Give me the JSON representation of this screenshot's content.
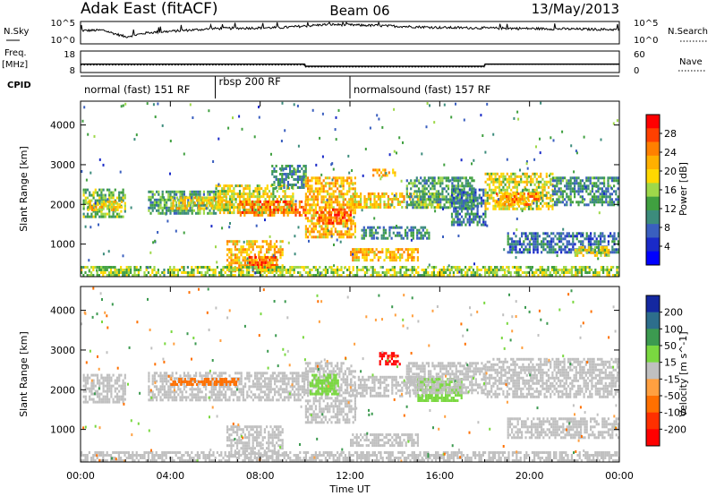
{
  "header": {
    "title": "Adak East (fitACF)",
    "beam": "Beam 06",
    "date": "13/May/2013"
  },
  "panel_labels": {
    "nsky": "N.Sky",
    "nsky_scale_hi": "10^5",
    "nsky_scale_lo": "10^0",
    "nsearch": "N.Search",
    "nsearch_scale_hi": "10^5",
    "nsearch_scale_lo": "10^0",
    "freq_line1": "Freq.",
    "freq_line2": "[MHz]",
    "freq_hi": "18",
    "freq_lo": "8",
    "nave": "Nave",
    "nave_hi": "60",
    "nave_lo": "0",
    "cpid": "CPID"
  },
  "modes": [
    {
      "label": "normal (fast) 151 RF",
      "start_h": 0,
      "end_h": 6
    },
    {
      "label": "rbsp 200 RF",
      "start_h": 6,
      "end_h": 12
    },
    {
      "label": "normalsound (fast) 157 RF",
      "start_h": 12,
      "end_h": 24
    }
  ],
  "power_colorbar": {
    "label": "Power [dB]",
    "ticks": [
      "28",
      "24",
      "20",
      "16",
      "12",
      "8",
      "4"
    ],
    "colors": [
      "#ff0000",
      "#ff4000",
      "#ff8000",
      "#ffb000",
      "#ffd800",
      "#9ed84a",
      "#40a040",
      "#3c8c7c",
      "#3a5fbf",
      "#1a2ac8",
      "#0000ff"
    ]
  },
  "velocity_colorbar": {
    "label": "Velocity [m s^-1]",
    "ticks": [
      "200",
      "100",
      "50",
      "15",
      "-15",
      "-50",
      "-100",
      "-200"
    ],
    "colors": [
      "#1428a0",
      "#2d6e8c",
      "#3c9a50",
      "#7ad840",
      "#c0c0c0",
      "#ffa040",
      "#ff7000",
      "#ff3000",
      "#ff0000"
    ]
  },
  "chart_data": {
    "type": "heatmap",
    "xlabel": "Time UT",
    "x_ticks": [
      "00:00",
      "04:00",
      "08:00",
      "12:00",
      "16:00",
      "20:00",
      "00:00"
    ],
    "xlim_hours": [
      0,
      24
    ],
    "ylabel": "Slant Range [km]",
    "y_ticks": [
      1000,
      2000,
      3000,
      4000
    ],
    "ylim_km": [
      180,
      4600
    ],
    "frequency_mhz": [
      {
        "start_h": 0,
        "end_h": 10,
        "value": 11.8
      },
      {
        "start_h": 10,
        "end_h": 18,
        "value": 10.7
      },
      {
        "start_h": 18,
        "end_h": 24,
        "value": 11.8
      }
    ],
    "nave": [
      {
        "start_h": 0,
        "end_h": 10,
        "value": 20
      },
      {
        "start_h": 10,
        "end_h": 18,
        "value": 14
      },
      {
        "start_h": 18,
        "end_h": 24,
        "value": 22
      }
    ],
    "nsky_log_profile": [
      {
        "h": 0,
        "v": 0.6
      },
      {
        "h": 1,
        "v": 0.62
      },
      {
        "h": 2,
        "v": 0.3
      },
      {
        "h": 3,
        "v": 0.5
      },
      {
        "h": 6,
        "v": 0.7
      },
      {
        "h": 9,
        "v": 0.75
      },
      {
        "h": 11,
        "v": 0.9
      },
      {
        "h": 13,
        "v": 0.85
      },
      {
        "h": 16,
        "v": 0.75
      },
      {
        "h": 20,
        "v": 0.7
      },
      {
        "h": 24,
        "v": 0.65
      }
    ],
    "power_regions_db": [
      {
        "t0": 0.1,
        "t1": 2.0,
        "r0": 1700,
        "r1": 2400,
        "db": 14
      },
      {
        "t0": 0.3,
        "t1": 1.8,
        "r0": 1850,
        "r1": 2100,
        "db": 20
      },
      {
        "t0": 3.0,
        "t1": 6.0,
        "r0": 1800,
        "r1": 2350,
        "db": 12
      },
      {
        "t0": 4.0,
        "t1": 6.5,
        "r0": 1900,
        "r1": 2200,
        "db": 20
      },
      {
        "t0": 6.0,
        "t1": 9.5,
        "r0": 1800,
        "r1": 2500,
        "db": 18
      },
      {
        "t0": 7.0,
        "t1": 10.0,
        "r0": 1700,
        "r1": 2100,
        "db": 26
      },
      {
        "t0": 6.5,
        "t1": 9.0,
        "r0": 300,
        "r1": 1100,
        "db": 22
      },
      {
        "t0": 7.5,
        "t1": 8.8,
        "r0": 400,
        "r1": 700,
        "db": 28
      },
      {
        "t0": 8.5,
        "t1": 10.0,
        "r0": 2400,
        "r1": 3000,
        "db": 10
      },
      {
        "t0": 10.0,
        "t1": 12.2,
        "r0": 1200,
        "r1": 2700,
        "db": 22
      },
      {
        "t0": 10.5,
        "t1": 12.0,
        "r0": 1500,
        "r1": 1900,
        "db": 28
      },
      {
        "t0": 12.0,
        "t1": 16.0,
        "r0": 1900,
        "r1": 2300,
        "db": 20
      },
      {
        "t0": 12.0,
        "t1": 15.0,
        "r0": 600,
        "r1": 900,
        "db": 22
      },
      {
        "t0": 12.5,
        "t1": 15.5,
        "r0": 1150,
        "r1": 1450,
        "db": 10
      },
      {
        "t0": 13.0,
        "t1": 14.0,
        "r0": 2700,
        "r1": 2900,
        "db": 22
      },
      {
        "t0": 14.5,
        "t1": 17.5,
        "r0": 1900,
        "r1": 2700,
        "db": 12
      },
      {
        "t0": 16.5,
        "t1": 18.0,
        "r0": 1500,
        "r1": 2400,
        "db": 8
      },
      {
        "t0": 18.0,
        "t1": 21.0,
        "r0": 1900,
        "r1": 2800,
        "db": 18
      },
      {
        "t0": 18.5,
        "t1": 20.5,
        "r0": 2000,
        "r1": 2300,
        "db": 24
      },
      {
        "t0": 21.0,
        "t1": 24.0,
        "r0": 2000,
        "r1": 2700,
        "db": 10
      },
      {
        "t0": 19.0,
        "t1": 24.0,
        "r0": 800,
        "r1": 1300,
        "db": 8
      },
      {
        "t0": 22.0,
        "t1": 23.5,
        "r0": 700,
        "r1": 950,
        "db": 18
      },
      {
        "t0": 0.0,
        "t1": 24.0,
        "r0": 200,
        "r1": 450,
        "db": 16
      }
    ],
    "velocity_regions_ms": [
      {
        "t0": 0.1,
        "t1": 2.0,
        "r0": 1700,
        "r1": 2400,
        "v": 0
      },
      {
        "t0": 3.0,
        "t1": 10.0,
        "r0": 1750,
        "r1": 2450,
        "v": 0
      },
      {
        "t0": 4.0,
        "t1": 7.0,
        "r0": 2100,
        "r1": 2300,
        "v": -60
      },
      {
        "t0": 6.5,
        "t1": 9.0,
        "r0": 300,
        "r1": 1100,
        "v": 0
      },
      {
        "t0": 10.0,
        "t1": 12.2,
        "r0": 1200,
        "r1": 2700,
        "v": 0
      },
      {
        "t0": 10.2,
        "t1": 11.5,
        "r0": 1900,
        "r1": 2400,
        "v": 40
      },
      {
        "t0": 12.0,
        "t1": 16.0,
        "r0": 1850,
        "r1": 2350,
        "v": 0
      },
      {
        "t0": 12.0,
        "t1": 15.0,
        "r0": 600,
        "r1": 900,
        "v": 0
      },
      {
        "t0": 13.3,
        "t1": 14.2,
        "r0": 2650,
        "r1": 2950,
        "v": -220
      },
      {
        "t0": 15.0,
        "t1": 17.0,
        "r0": 1750,
        "r1": 2300,
        "v": 30
      },
      {
        "t0": 14.5,
        "t1": 18.0,
        "r0": 1900,
        "r1": 2700,
        "v": 0
      },
      {
        "t0": 18.0,
        "t1": 24.0,
        "r0": 1800,
        "r1": 2800,
        "v": 0
      },
      {
        "t0": 19.0,
        "t1": 24.0,
        "r0": 800,
        "r1": 1300,
        "v": 0
      },
      {
        "t0": 0.0,
        "t1": 24.0,
        "r0": 200,
        "r1": 450,
        "v": 0
      }
    ]
  }
}
